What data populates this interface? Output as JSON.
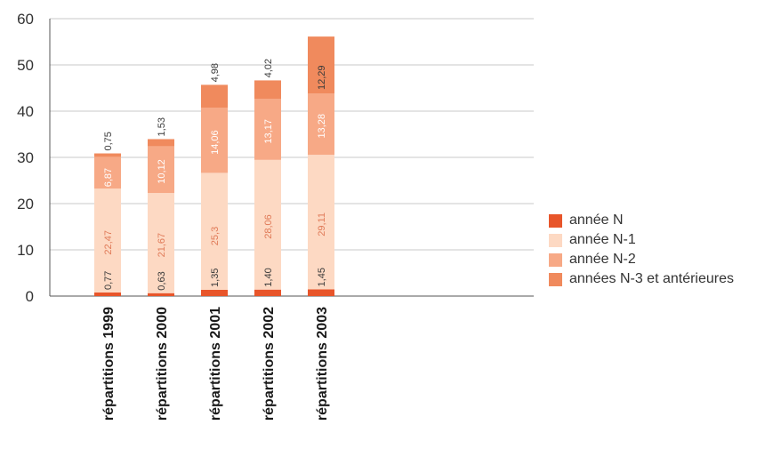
{
  "chart_data": {
    "type": "bar",
    "stacked": true,
    "title": "",
    "xlabel": "",
    "ylabel": "",
    "ylim": [
      0,
      60
    ],
    "yticks": [
      0,
      10,
      20,
      30,
      40,
      50,
      60
    ],
    "grid": true,
    "legend_position": "right",
    "categories": [
      "répartitions 1999",
      "répartitions 2000",
      "répartitions 2001",
      "répartitions 2002",
      "répartitions 2003"
    ],
    "series": [
      {
        "name": "année N",
        "color": "#e8552a",
        "label_color": "#3a3a3a",
        "values": [
          0.77,
          0.63,
          1.35,
          1.4,
          1.45
        ],
        "labels": [
          "0,77",
          "0,63",
          "1,35",
          "1,40",
          "1,45"
        ]
      },
      {
        "name": "année N-1",
        "color": "#fdd9c3",
        "label_color": "#e07a58",
        "values": [
          22.47,
          21.67,
          25.3,
          28.06,
          29.11
        ],
        "labels": [
          "22,47",
          "21,67",
          "25,3",
          "28,06",
          "29,11"
        ]
      },
      {
        "name": "année N-2",
        "color": "#f7a986",
        "label_color": "#ffffff",
        "values": [
          6.87,
          10.12,
          14.06,
          13.17,
          13.28
        ],
        "labels": [
          "6,87",
          "10,12",
          "14,06",
          "13,17",
          "13,28"
        ]
      },
      {
        "name": "années N-3 et antérieures",
        "color": "#f08a5d",
        "label_color": "#3a3a3a",
        "values": [
          0.75,
          1.53,
          4.98,
          4.02,
          12.29
        ],
        "labels": [
          "0,75",
          "1,53",
          "4,98",
          "4,02",
          "12,29"
        ]
      }
    ]
  }
}
